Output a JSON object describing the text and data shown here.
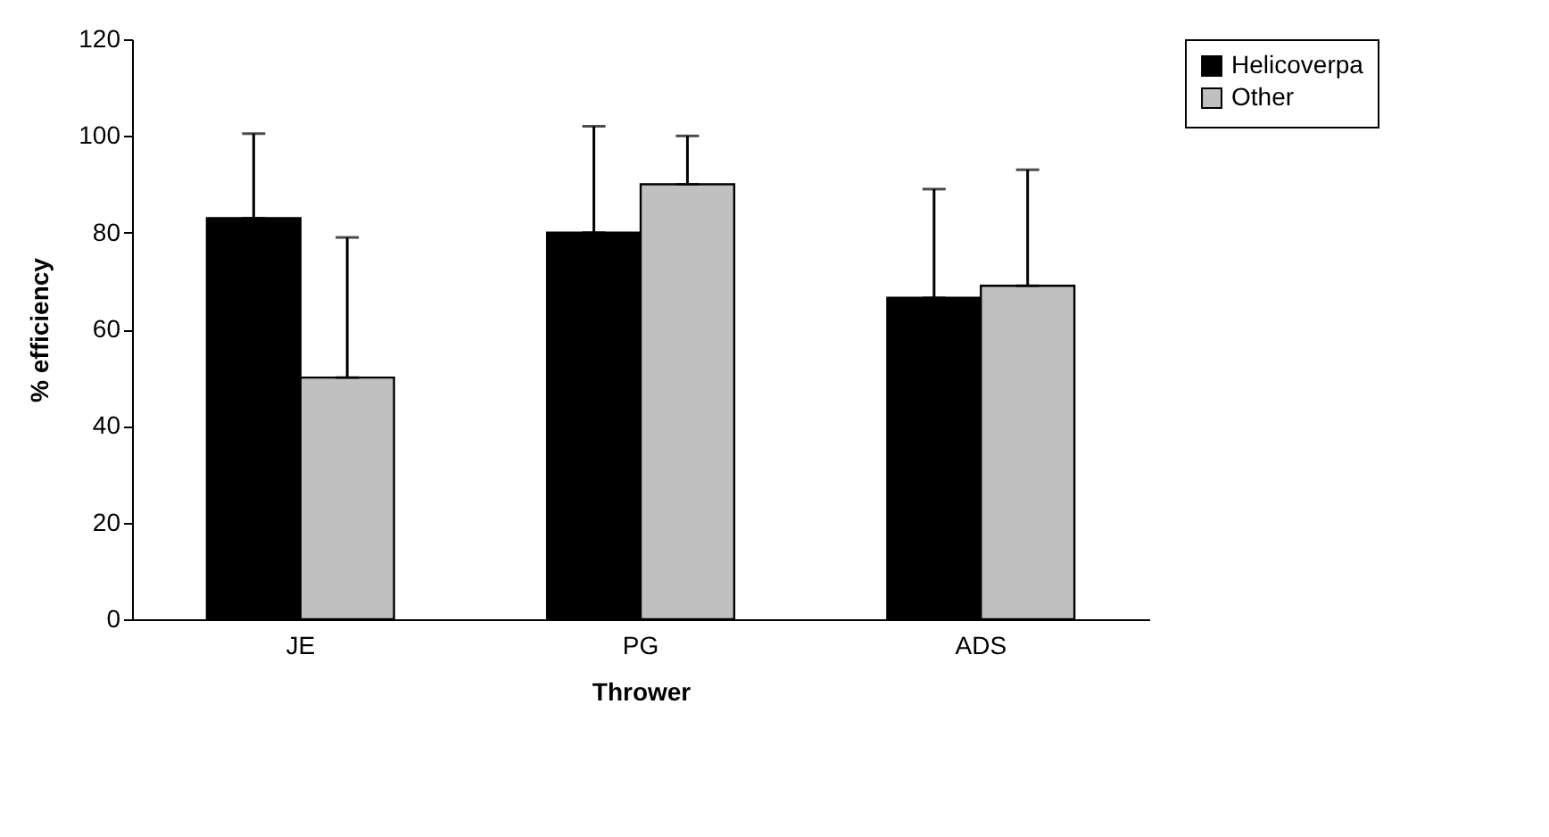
{
  "chart_data": {
    "type": "bar",
    "xlabel": "Thrower",
    "ylabel": "% efficiency",
    "categories": [
      "JE",
      "PG",
      "ADS"
    ],
    "series": [
      {
        "name": "Helicoverpa",
        "color": "#000000",
        "values": [
          83,
          80,
          66.5
        ],
        "errors": [
          [
            83,
            100.5
          ],
          [
            80,
            102
          ],
          [
            66.5,
            89
          ]
        ]
      },
      {
        "name": "Other",
        "color": "#c0c0c0",
        "values": [
          50,
          90,
          69
        ],
        "errors": [
          [
            50,
            79
          ],
          [
            90,
            100
          ],
          [
            69,
            93
          ]
        ]
      }
    ],
    "ylim": [
      0,
      120
    ],
    "yticks": [
      0,
      20,
      40,
      60,
      80,
      100,
      120
    ],
    "grid": false,
    "legend": "right"
  }
}
